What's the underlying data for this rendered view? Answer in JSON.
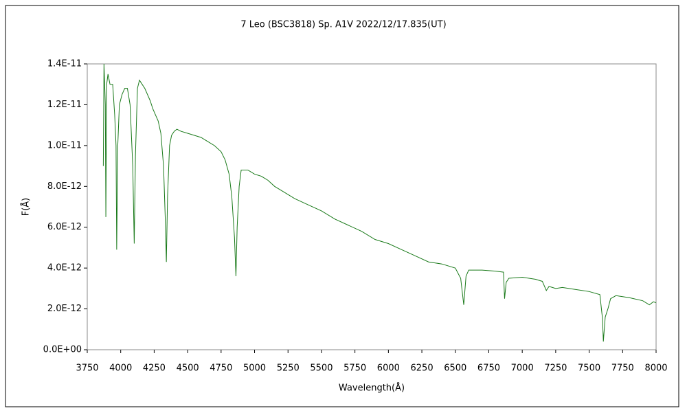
{
  "chart_data": {
    "type": "line",
    "title": "7 Leo (BSC3818)   Sp. A1V   2022/12/17.835(UT)",
    "x_label": "Wavelength(Å)",
    "y_label": "F(Å)",
    "x": [
      3870,
      3875,
      3885,
      3889,
      3895,
      3905,
      3920,
      3940,
      3955,
      3965,
      3970,
      3978,
      3990,
      4010,
      4030,
      4050,
      4070,
      4090,
      4101,
      4110,
      4125,
      4140,
      4160,
      4180,
      4200,
      4220,
      4240,
      4260,
      4280,
      4300,
      4320,
      4335,
      4341,
      4350,
      4365,
      4380,
      4400,
      4420,
      4450,
      4500,
      4550,
      4600,
      4650,
      4700,
      4750,
      4780,
      4810,
      4830,
      4850,
      4861,
      4870,
      4885,
      4900,
      4950,
      5000,
      5050,
      5100,
      5150,
      5200,
      5300,
      5400,
      5500,
      5600,
      5700,
      5800,
      5900,
      6000,
      6100,
      6200,
      6300,
      6400,
      6500,
      6540,
      6563,
      6580,
      6600,
      6700,
      6800,
      6860,
      6868,
      6880,
      6900,
      7000,
      7100,
      7150,
      7180,
      7200,
      7250,
      7300,
      7400,
      7500,
      7580,
      7600,
      7606,
      7620,
      7640,
      7660,
      7700,
      7800,
      7900,
      7950,
      7980,
      8000
    ],
    "series": [
      {
        "name": "F",
        "color": "#1a7a1a",
        "values": [
          9e-12,
          1.4e-11,
          1.2e-11,
          6.5e-12,
          1.3e-11,
          1.35e-11,
          1.3e-11,
          1.3e-11,
          1.15e-11,
          1e-11,
          4.9e-12,
          1e-11,
          1.2e-11,
          1.25e-11,
          1.28e-11,
          1.28e-11,
          1.2e-11,
          9e-12,
          5.2e-12,
          9.5e-12,
          1.28e-11,
          1.32e-11,
          1.3e-11,
          1.28e-11,
          1.25e-11,
          1.22e-11,
          1.18e-11,
          1.15e-11,
          1.12e-11,
          1.06e-11,
          9e-12,
          6e-12,
          4.3e-12,
          7.5e-12,
          1e-11,
          1.05e-11,
          1.07e-11,
          1.08e-11,
          1.07e-11,
          1.06e-11,
          1.05e-11,
          1.04e-11,
          1.02e-11,
          1e-11,
          9.7e-12,
          9.3e-12,
          8.6e-12,
          7.5e-12,
          5.5e-12,
          3.6e-12,
          6e-12,
          8e-12,
          8.8e-12,
          8.8e-12,
          8.6e-12,
          8.5e-12,
          8.3e-12,
          8e-12,
          7.8e-12,
          7.4e-12,
          7.1e-12,
          6.8e-12,
          6.4e-12,
          6.1e-12,
          5.8e-12,
          5.4e-12,
          5.2e-12,
          4.9e-12,
          4.6e-12,
          4.3e-12,
          4.2e-12,
          4e-12,
          3.5e-12,
          2.2e-12,
          3.6e-12,
          3.9e-12,
          3.9e-12,
          3.85e-12,
          3.8e-12,
          2.5e-12,
          3.3e-12,
          3.5e-12,
          3.55e-12,
          3.45e-12,
          3.35e-12,
          2.9e-12,
          3.1e-12,
          3e-12,
          3.05e-12,
          2.95e-12,
          2.85e-12,
          2.7e-12,
          1.5e-12,
          4e-13,
          1.6e-12,
          2e-12,
          2.5e-12,
          2.65e-12,
          2.55e-12,
          2.4e-12,
          2.2e-12,
          2.35e-12,
          2.3e-12
        ]
      }
    ],
    "xlim": [
      3750,
      8000
    ],
    "xticks": [
      3750,
      4000,
      4250,
      4500,
      4750,
      5000,
      5250,
      5500,
      5750,
      6000,
      6250,
      6500,
      6750,
      7000,
      7250,
      7500,
      7750,
      8000
    ],
    "ylim": [
      0,
      1.4e-11
    ],
    "yticks": [
      {
        "value": 0,
        "label": "0.0E+00"
      },
      {
        "value": 2e-12,
        "label": "2.0E-12"
      },
      {
        "value": 4e-12,
        "label": "4.0E-12"
      },
      {
        "value": 6e-12,
        "label": "6.0E-12"
      },
      {
        "value": 8e-12,
        "label": "8.0E-12"
      },
      {
        "value": 1e-11,
        "label": "1.0E-11"
      },
      {
        "value": 1.2e-11,
        "label": "1.2E-11"
      },
      {
        "value": 1.4e-11,
        "label": "1.4E-11"
      }
    ],
    "grid": false
  }
}
